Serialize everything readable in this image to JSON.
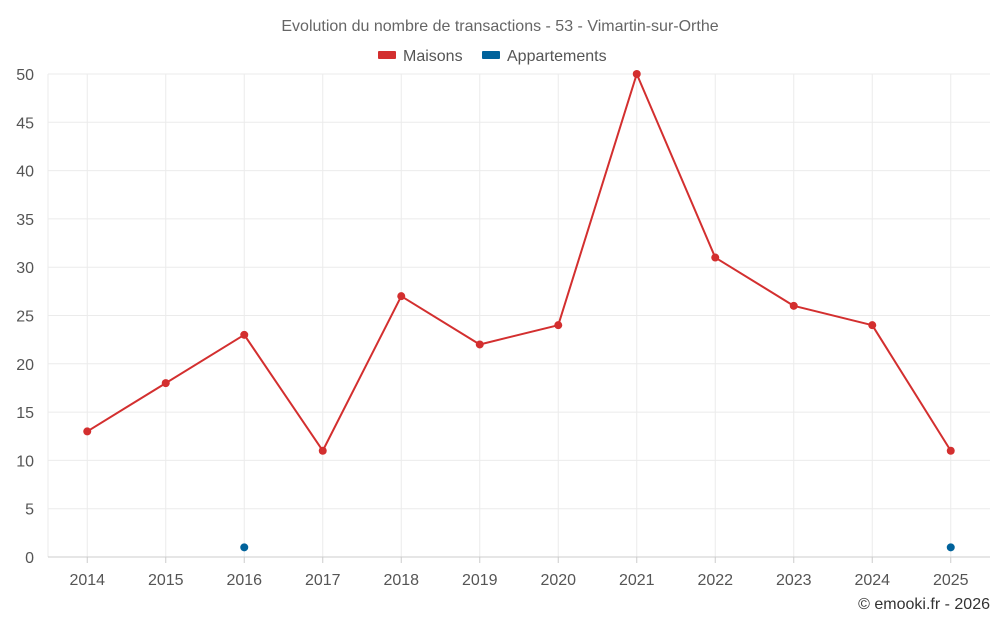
{
  "chart_data": {
    "type": "line",
    "title": "Evolution du nombre de transactions - 53 - Vimartin-sur-Orthe",
    "xlabel": "",
    "ylabel": "",
    "categories": [
      "2014",
      "2015",
      "2016",
      "2017",
      "2018",
      "2019",
      "2020",
      "2021",
      "2022",
      "2023",
      "2024",
      "2025"
    ],
    "ylim": [
      0,
      50
    ],
    "yticks": [
      0,
      5,
      10,
      15,
      20,
      25,
      30,
      35,
      40,
      45,
      50
    ],
    "grid": true,
    "legend_position": "top-center",
    "series": [
      {
        "name": "Maisons",
        "color": "#d32f2f",
        "values": [
          13,
          18,
          23,
          11,
          27,
          22,
          24,
          50,
          31,
          26,
          24,
          11
        ]
      },
      {
        "name": "Appartements",
        "color": "#00629b",
        "values": [
          null,
          null,
          1,
          null,
          null,
          null,
          null,
          null,
          null,
          null,
          null,
          1
        ]
      }
    ]
  },
  "credit": "© emooki.fr - 2026"
}
